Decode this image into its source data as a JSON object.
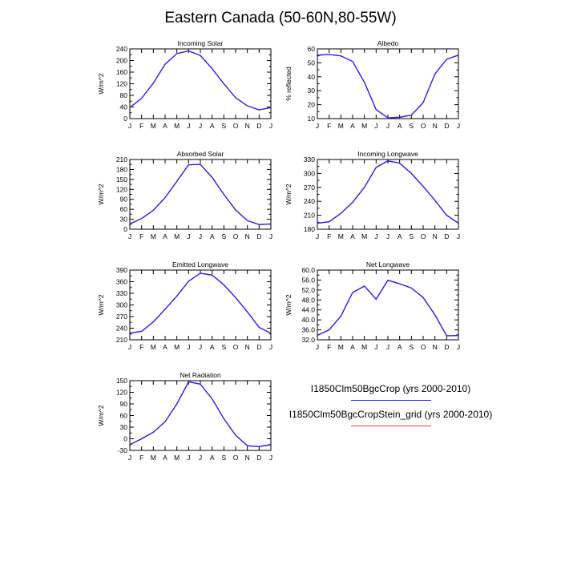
{
  "page": {
    "title": "Eastern Canada (50-60N,80-55W)"
  },
  "legend": {
    "entries": [
      {
        "label": "I1850Clm50BgcCrop (yrs 2000-2010)",
        "color": "#2020ff"
      },
      {
        "label": "I1850Clm50BgcCropStein_grid (yrs 2000-2010)",
        "color": "#ff3030"
      }
    ]
  },
  "chart_data": [
    {
      "type": "line",
      "title": "Incoming Solar",
      "ylabel": "W/m^2",
      "categories": [
        "J",
        "F",
        "M",
        "A",
        "M",
        "J",
        "J",
        "A",
        "S",
        "O",
        "N",
        "D",
        "J"
      ],
      "yticks": [
        "0",
        "40",
        "80",
        "120",
        "160",
        "200",
        "240"
      ],
      "ylim": [
        0,
        240
      ],
      "series": [
        {
          "values": [
            38,
            70,
            122,
            187,
            224,
            233,
            217,
            172,
            120,
            72,
            44,
            30,
            38
          ],
          "color": "#2020ff"
        },
        {
          "values": [
            38,
            70,
            122,
            187,
            224,
            233,
            217,
            172,
            120,
            72,
            44,
            30,
            38
          ],
          "color": "#ff3030"
        }
      ]
    },
    {
      "type": "line",
      "title": "Albedo",
      "ylabel": "% reflected",
      "categories": [
        "J",
        "F",
        "M",
        "A",
        "M",
        "J",
        "J",
        "A",
        "S",
        "O",
        "N",
        "D",
        "J"
      ],
      "yticks": [
        "10",
        "20",
        "30",
        "40",
        "50",
        "60"
      ],
      "ylim": [
        10,
        60
      ],
      "series": [
        {
          "values": [
            55.5,
            56,
            55,
            51,
            36,
            16.5,
            10.5,
            11,
            12.5,
            21.5,
            42,
            52.5,
            55.5
          ],
          "color": "#2020ff"
        },
        {
          "values": [
            55.5,
            56,
            55,
            51,
            36,
            16.5,
            10.5,
            11,
            12.5,
            21.5,
            42,
            52.5,
            55.5
          ],
          "color": "#ff3030"
        }
      ]
    },
    {
      "type": "line",
      "title": "Absorbed Solar",
      "ylabel": "W/m^2",
      "categories": [
        "J",
        "F",
        "M",
        "A",
        "M",
        "J",
        "J",
        "A",
        "S",
        "O",
        "N",
        "D",
        "J"
      ],
      "yticks": [
        "0",
        "30",
        "60",
        "90",
        "120",
        "150",
        "180",
        "210"
      ],
      "ylim": [
        0,
        210
      ],
      "series": [
        {
          "values": [
            16,
            32,
            57,
            95,
            144,
            194,
            195,
            156,
            105,
            58,
            26,
            14,
            16
          ],
          "color": "#2020ff"
        },
        {
          "values": [
            16,
            32,
            57,
            95,
            144,
            194,
            195,
            156,
            105,
            58,
            26,
            14,
            16
          ],
          "color": "#ff3030"
        }
      ]
    },
    {
      "type": "line",
      "title": "Incoming Longwave",
      "ylabel": "W/m^2",
      "categories": [
        "J",
        "F",
        "M",
        "A",
        "M",
        "J",
        "J",
        "A",
        "S",
        "O",
        "N",
        "D",
        "J"
      ],
      "yticks": [
        "180",
        "210",
        "240",
        "270",
        "300",
        "330"
      ],
      "ylim": [
        180,
        330
      ],
      "series": [
        {
          "values": [
            193,
            196,
            214,
            238,
            270,
            313,
            327,
            322,
            300,
            272,
            242,
            210,
            193
          ],
          "color": "#2020ff"
        },
        {
          "values": [
            193,
            196,
            214,
            238,
            270,
            313,
            327,
            322,
            300,
            272,
            242,
            210,
            193
          ],
          "color": "#ff3030"
        }
      ]
    },
    {
      "type": "line",
      "title": "Emitted Longwave",
      "ylabel": "W/m^2",
      "categories": [
        "J",
        "F",
        "M",
        "A",
        "M",
        "J",
        "J",
        "A",
        "S",
        "O",
        "N",
        "D",
        "J"
      ],
      "yticks": [
        "210",
        "240",
        "270",
        "300",
        "330",
        "360",
        "390"
      ],
      "ylim": [
        210,
        390
      ],
      "series": [
        {
          "values": [
            227,
            232,
            256,
            289,
            323,
            361,
            382,
            377,
            352,
            319,
            282,
            242,
            227
          ],
          "color": "#2020ff"
        },
        {
          "values": [
            227,
            232,
            256,
            289,
            323,
            361,
            382,
            377,
            352,
            319,
            282,
            242,
            227
          ],
          "color": "#ff3030"
        }
      ]
    },
    {
      "type": "line",
      "title": "Net Longwave",
      "ylabel": "W/m^2",
      "categories": [
        "J",
        "F",
        "M",
        "A",
        "M",
        "J",
        "J",
        "A",
        "S",
        "O",
        "N",
        "D",
        "J"
      ],
      "yticks": [
        "32.0",
        "36.0",
        "40.0",
        "44.0",
        "48.0",
        "52.0",
        "56.0",
        "60.0"
      ],
      "ylim": [
        32,
        60
      ],
      "series": [
        {
          "values": [
            33.8,
            36,
            41.5,
            51,
            53.6,
            48.3,
            55.9,
            54.5,
            52.8,
            49,
            42,
            33.6,
            33.7
          ],
          "color": "#2020ff"
        },
        {
          "values": [
            33.8,
            36,
            41.5,
            51,
            53.6,
            48.3,
            55.9,
            54.5,
            52.8,
            49,
            42,
            33.6,
            33.7
          ],
          "color": "#ff3030"
        }
      ]
    },
    {
      "type": "line",
      "title": "Net Radiation",
      "ylabel": "W/m^2",
      "categories": [
        "J",
        "F",
        "M",
        "A",
        "M",
        "J",
        "J",
        "A",
        "S",
        "O",
        "N",
        "D",
        "J"
      ],
      "yticks": [
        "-30",
        "0",
        "30",
        "60",
        "90",
        "120",
        "150"
      ],
      "ylim": [
        -30,
        150
      ],
      "series": [
        {
          "values": [
            -15,
            0,
            17,
            44,
            90,
            147,
            141,
            103,
            52,
            9,
            -18,
            -20,
            -15
          ],
          "color": "#2020ff"
        },
        {
          "values": [
            -15,
            0,
            17,
            44,
            90,
            147,
            141,
            103,
            52,
            9,
            -18,
            -20,
            -15
          ],
          "color": "#ff3030"
        }
      ]
    }
  ]
}
